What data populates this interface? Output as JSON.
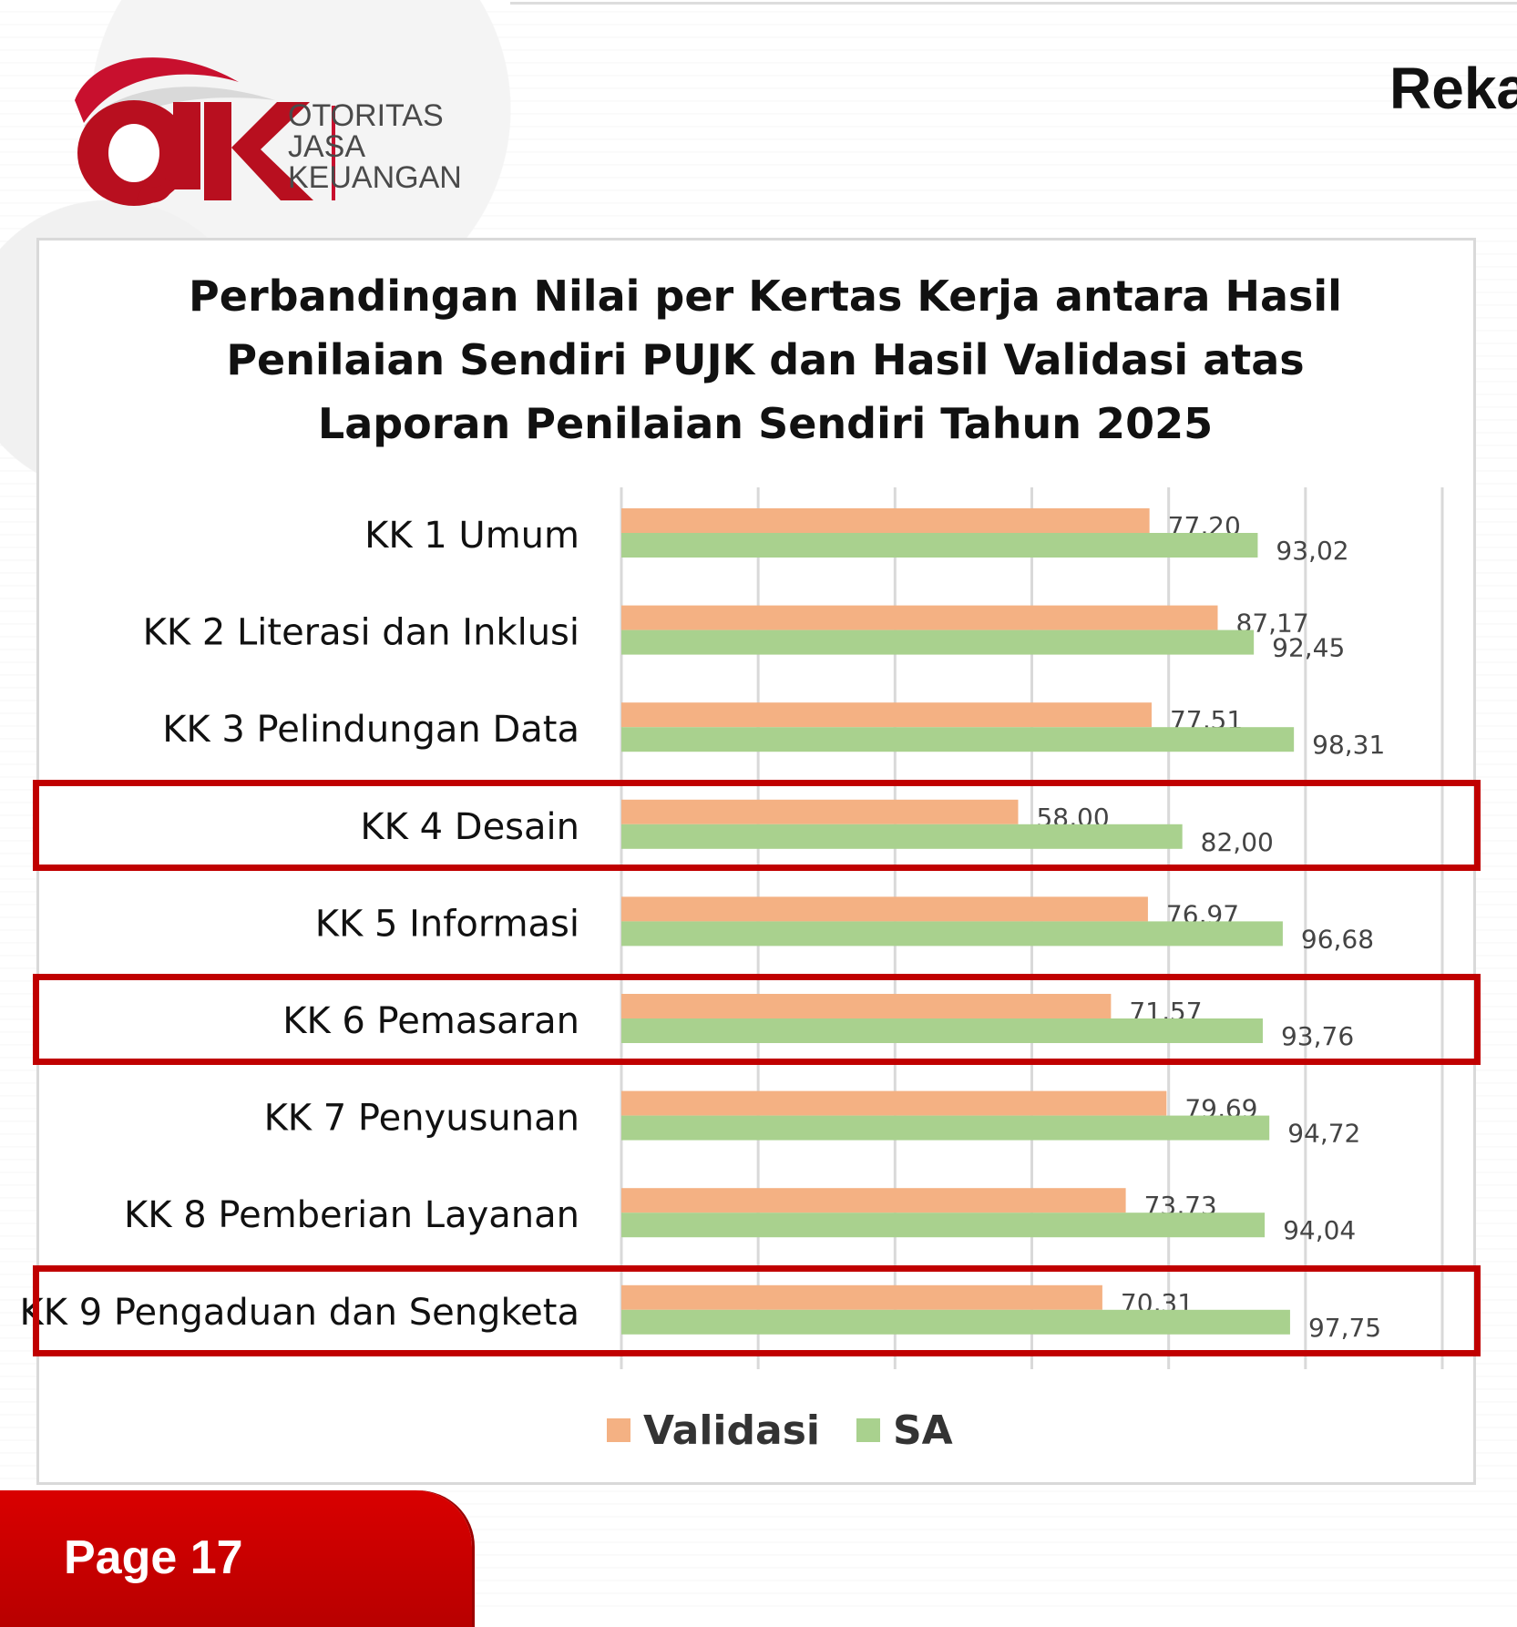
{
  "header": {
    "brand_name": "OJK",
    "org_lines": [
      "OTORITAS",
      "JASA",
      "KEUANGAN"
    ],
    "page_title": "Reka"
  },
  "chart_data": {
    "type": "bar",
    "orientation": "horizontal",
    "title_lines": [
      "Perbandingan Nilai per Kertas Kerja antara Hasil",
      "Penilaian Sendiri PUJK dan Hasil Validasi atas",
      "Laporan Penilaian Sendiri Tahun 2025"
    ],
    "categories": [
      "KK 1 Umum",
      "KK 2 Literasi dan Inklusi",
      "KK 3 Pelindungan Data",
      "KK 4 Desain",
      "KK 5 Informasi",
      "KK 6 Pemasaran",
      "KK 7 Penyusunan",
      "KK 8 Pemberian Layanan",
      "KK 9 Pengaduan dan Sengketa"
    ],
    "series": [
      {
        "name": "Validasi",
        "color": "#f4b183",
        "values": [
          77.2,
          87.17,
          77.51,
          58.0,
          76.97,
          71.57,
          79.69,
          73.73,
          70.31
        ],
        "labels": [
          "77,20",
          "87,17",
          "77,51",
          "58,00",
          "76,97",
          "71,57",
          "79,69",
          "73,73",
          "70,31"
        ]
      },
      {
        "name": "SA",
        "color": "#a9d18e",
        "values": [
          93.02,
          92.45,
          98.31,
          82.0,
          96.68,
          93.76,
          94.72,
          94.04,
          97.75
        ],
        "labels": [
          "93,02",
          "92,45",
          "98,31",
          "82,00",
          "96,68",
          "93,76",
          "94,72",
          "94,04",
          "97,75"
        ]
      }
    ],
    "xlim": [
      0,
      120
    ],
    "x_gridlines": [
      0,
      20,
      40,
      60,
      80,
      100,
      120
    ],
    "grid": true,
    "legend_position": "bottom",
    "highlighted_categories": [
      "KK 4 Desain",
      "KK 6 Pemasaran",
      "KK 9 Pengaduan dan Sengketa"
    ],
    "highlight_color": "#c00000"
  },
  "footer": {
    "page_label": "Page 17"
  }
}
